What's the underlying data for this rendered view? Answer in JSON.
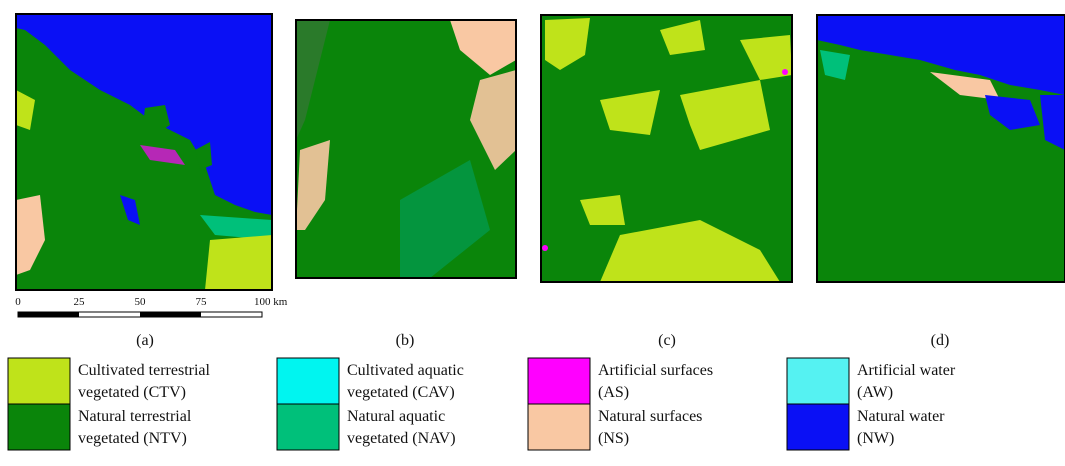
{
  "panels": [
    {
      "label": "(a)"
    },
    {
      "label": "(b)"
    },
    {
      "label": "(c)"
    },
    {
      "label": "(d)"
    }
  ],
  "scale_bar": {
    "ticks": [
      "0",
      "25",
      "50",
      "75",
      "100 km"
    ]
  },
  "legend": [
    {
      "lines": [
        "Cultivated terrestrial",
        "vegetated (CTV)"
      ],
      "color": "#bfe31a"
    },
    {
      "lines": [
        "Natural terrestrial",
        "vegetated (NTV)"
      ],
      "color": "#0a850a"
    },
    {
      "lines": [
        "Cultivated aquatic",
        "vegetated (CAV)"
      ],
      "color": "#00f5f0"
    },
    {
      "lines": [
        "Natural aquatic",
        "vegetated (NAV)"
      ],
      "color": "#00c07a"
    },
    {
      "lines": [
        "Artificial surfaces",
        "(AS)"
      ],
      "color": "#ff00ff"
    },
    {
      "lines": [
        "Natural surfaces",
        "(NS)"
      ],
      "color": "#f9c8a3"
    },
    {
      "lines": [
        "Artificial water",
        "(AW)"
      ],
      "color": "#55f2f2"
    },
    {
      "lines": [
        "Natural water",
        "(NW)"
      ],
      "color": "#0a10f5"
    }
  ]
}
